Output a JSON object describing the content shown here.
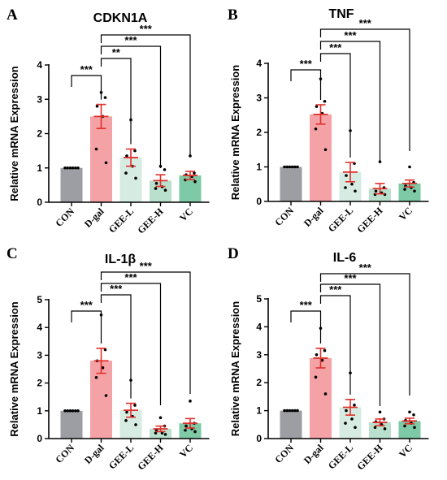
{
  "chart_data": [
    {
      "panel": "A",
      "type": "bar",
      "title": "CDKN1A",
      "ylabel": "Relative mRNA Expression",
      "ylim": [
        0,
        4
      ],
      "yticks": [
        "0",
        "1",
        "2",
        "3",
        "4"
      ],
      "categories": [
        "CON",
        "D-gal",
        "GEE-L",
        "GEE-H",
        "VC"
      ],
      "values": [
        1.0,
        2.5,
        1.3,
        0.63,
        0.78
      ],
      "errors": [
        0.0,
        0.35,
        0.25,
        0.17,
        0.12
      ],
      "points": [
        [
          1.0,
          1.0,
          1.0,
          1.0,
          1.0,
          1.0
        ],
        [
          3.2,
          3.05,
          2.8,
          2.5,
          1.55,
          1.15
        ],
        [
          2.4,
          1.5,
          1.35,
          1.05,
          0.85,
          0.7
        ],
        [
          1.05,
          0.95,
          0.55,
          0.45,
          0.4,
          0.35
        ],
        [
          1.35,
          0.85,
          0.8,
          0.75,
          0.65,
          0.6
        ]
      ],
      "colors": [
        "#9c9ea3",
        "#f4a2a6",
        "#d6ece2",
        "#b9e0cc",
        "#7ec9a6"
      ],
      "comparisons": [
        {
          "from": "CON",
          "to": "D-gal",
          "label": "***"
        },
        {
          "from": "D-gal",
          "to": "GEE-L",
          "label": "**"
        },
        {
          "from": "D-gal",
          "to": "GEE-H",
          "label": "***"
        },
        {
          "from": "D-gal",
          "to": "VC",
          "label": "***"
        }
      ]
    },
    {
      "panel": "B",
      "type": "bar",
      "title": "TNF",
      "ylabel": "Relative mRNA Expression",
      "ylim": [
        0,
        4
      ],
      "yticks": [
        "0",
        "1",
        "2",
        "3",
        "4"
      ],
      "categories": [
        "CON",
        "D-gal",
        "GEE-L",
        "GEE-H",
        "VC"
      ],
      "values": [
        1.0,
        2.52,
        0.85,
        0.37,
        0.52
      ],
      "errors": [
        0.0,
        0.28,
        0.28,
        0.15,
        0.1
      ],
      "points": [
        [
          1.0,
          1.0,
          1.0,
          1.0,
          1.0,
          1.0
        ],
        [
          3.55,
          2.9,
          2.75,
          2.55,
          2.1,
          1.5
        ],
        [
          2.05,
          1.1,
          0.75,
          0.5,
          0.4,
          0.3
        ],
        [
          1.15,
          0.4,
          0.3,
          0.25,
          0.2,
          0.2
        ],
        [
          1.0,
          0.55,
          0.45,
          0.4,
          0.35,
          0.3
        ]
      ],
      "colors": [
        "#9c9ea3",
        "#f4a2a6",
        "#d6ece2",
        "#b9e0cc",
        "#7ec9a6"
      ],
      "comparisons": [
        {
          "from": "CON",
          "to": "D-gal",
          "label": "***"
        },
        {
          "from": "D-gal",
          "to": "GEE-L",
          "label": "***"
        },
        {
          "from": "D-gal",
          "to": "GEE-H",
          "label": "***"
        },
        {
          "from": "D-gal",
          "to": "VC",
          "label": "***"
        }
      ]
    },
    {
      "panel": "C",
      "type": "bar",
      "title": "IL-1β",
      "ylabel": "Relative mRNA Expression",
      "ylim": [
        0,
        5
      ],
      "yticks": [
        "0",
        "1",
        "2",
        "3",
        "4",
        "5"
      ],
      "categories": [
        "CON",
        "D-gal",
        "GEE-L",
        "GEE-H",
        "VC"
      ],
      "values": [
        1.0,
        2.8,
        1.02,
        0.35,
        0.55
      ],
      "errors": [
        0.0,
        0.45,
        0.25,
        0.1,
        0.17
      ],
      "points": [
        [
          1.0,
          1.0,
          1.0,
          1.0,
          1.0,
          1.0
        ],
        [
          4.45,
          3.2,
          2.8,
          2.55,
          2.2,
          1.55
        ],
        [
          2.1,
          1.2,
          0.95,
          0.8,
          0.65,
          0.5
        ],
        [
          0.75,
          0.45,
          0.3,
          0.2,
          0.2,
          0.15
        ],
        [
          1.35,
          0.55,
          0.45,
          0.35,
          0.3,
          0.25
        ]
      ],
      "colors": [
        "#9c9ea3",
        "#f4a2a6",
        "#d6ece2",
        "#b9e0cc",
        "#7ec9a6"
      ],
      "comparisons": [
        {
          "from": "CON",
          "to": "D-gal",
          "label": "***"
        },
        {
          "from": "D-gal",
          "to": "GEE-L",
          "label": "***"
        },
        {
          "from": "D-gal",
          "to": "GEE-H",
          "label": "***"
        },
        {
          "from": "D-gal",
          "to": "VC",
          "label": "***"
        }
      ]
    },
    {
      "panel": "D",
      "type": "bar",
      "title": "IL-6",
      "ylabel": "Relative mRNA Expression",
      "ylim": [
        0,
        5
      ],
      "yticks": [
        "0",
        "1",
        "2",
        "3",
        "4",
        "5"
      ],
      "categories": [
        "CON",
        "D-gal",
        "GEE-L",
        "GEE-H",
        "VC"
      ],
      "values": [
        1.0,
        2.88,
        1.12,
        0.58,
        0.63
      ],
      "errors": [
        0.0,
        0.35,
        0.28,
        0.12,
        0.1
      ],
      "points": [
        [
          1.0,
          1.0,
          1.0,
          1.0,
          1.0,
          1.0
        ],
        [
          3.95,
          3.15,
          3.0,
          2.8,
          2.2,
          1.6
        ],
        [
          2.35,
          1.2,
          1.0,
          0.7,
          0.55,
          0.4
        ],
        [
          0.95,
          0.7,
          0.6,
          0.5,
          0.4,
          0.35
        ],
        [
          0.95,
          0.85,
          0.65,
          0.55,
          0.45,
          0.4
        ]
      ],
      "colors": [
        "#9c9ea3",
        "#f4a2a6",
        "#d6ece2",
        "#b9e0cc",
        "#7ec9a6"
      ],
      "comparisons": [
        {
          "from": "CON",
          "to": "D-gal",
          "label": "***"
        },
        {
          "from": "D-gal",
          "to": "GEE-L",
          "label": "***"
        },
        {
          "from": "D-gal",
          "to": "GEE-H",
          "label": "***"
        },
        {
          "from": "D-gal",
          "to": "VC",
          "label": "***"
        }
      ]
    }
  ]
}
